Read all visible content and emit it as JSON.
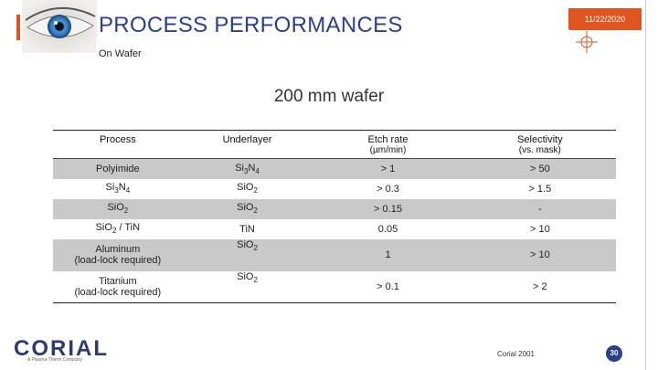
{
  "header": {
    "title": "PROCESS PERFORMANCES",
    "subtitle": "On Wafer",
    "date": "11/22/2020"
  },
  "section_title": "200 mm wafer",
  "table": {
    "headers": [
      {
        "label": "Process",
        "sub": ""
      },
      {
        "label": "Underlayer",
        "sub": ""
      },
      {
        "label": "Etch rate",
        "sub": "(µm/min)"
      },
      {
        "label": "Selectivity",
        "sub": "(vs. mask)"
      }
    ],
    "rows": [
      {
        "process": "Polyimide",
        "underlayer": "Si3N4",
        "etch_rate": "> 1",
        "selectivity": "> 50"
      },
      {
        "process": "Si3N4",
        "underlayer": "SiO2",
        "etch_rate": "> 0.3",
        "selectivity": "> 1.5"
      },
      {
        "process": "SiO2",
        "underlayer": "SiO2",
        "etch_rate": "> 0.15",
        "selectivity": "-"
      },
      {
        "process": "SiO2 / TiN",
        "underlayer": "TiN",
        "etch_rate": "0.05",
        "selectivity": "> 10"
      },
      {
        "process_line1": "Aluminum",
        "process_line2": "(load-lock required)",
        "underlayer": "SiO2",
        "etch_rate": "1",
        "selectivity": "> 10"
      },
      {
        "process_line1": "Titanium",
        "process_line2": "(load-lock required)",
        "underlayer": "SiO2",
        "etch_rate": "> 0.1",
        "selectivity": "> 2"
      }
    ]
  },
  "footer": {
    "logo": "CORIAL",
    "logo_tagline": "A Plasma-Therm Company",
    "copyright": "Corial 2001",
    "page_number": "30"
  },
  "colors": {
    "accent": "#e0541f",
    "brand": "#2b3f8c",
    "row_shade": "#c9c9c9"
  },
  "icons": {
    "eye": "eye-photo-icon",
    "crosshair": "crosshair-icon"
  }
}
